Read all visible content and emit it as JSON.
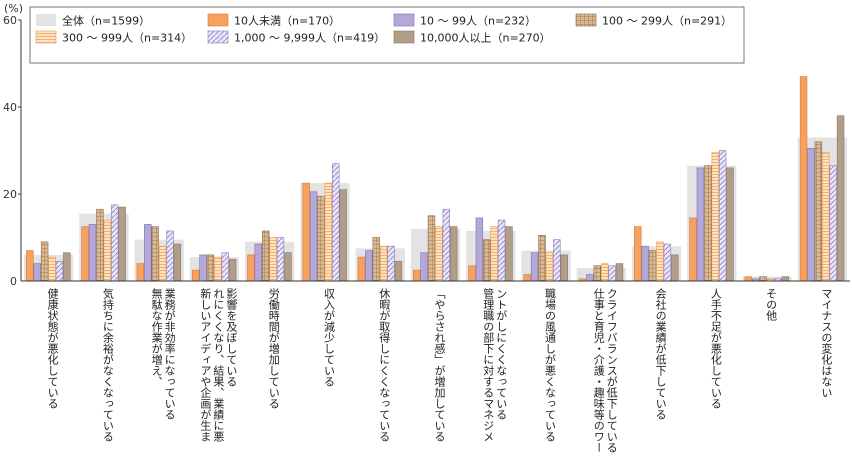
{
  "chart_data": {
    "type": "bar",
    "unit": "(%)",
    "ylim": [
      0,
      60
    ],
    "yticks": [
      0,
      20,
      40,
      60
    ],
    "grid": false,
    "legend_position": "top",
    "categories": [
      "健康状態が悪化している",
      "気持ちに余裕がなくなっている",
      "無駄な作業が増え、業務が非効率になっている",
      "新しいアイディアや企画が生まれにくくなり、結果、業績に悪影響を及ぼしている",
      "労働時間が増加している",
      "収入が減少している",
      "休暇が取得しにくくなっている",
      "「やらされ感」が増加している",
      "管理職の部下に対するマネジメントがしにくくなっている",
      "職場の風通しが悪くなっている",
      "仕事と育児・介護・趣味等のワークライフバランスが低下している",
      "会社の業績が低下している",
      "人手不足が悪化している",
      "その他",
      "マイナスの変化はない"
    ],
    "category_lines": [
      [
        "健康状態が悪化している"
      ],
      [
        "気持ちに余裕がなくなっている"
      ],
      [
        "無駄な作業が増え、",
        "業務が非効率になっている"
      ],
      [
        "新しいアイディアや企画が生ま",
        "れにくくなり、結果、業績に悪",
        "影響を及ぼしている"
      ],
      [
        "労働時間が増加している"
      ],
      [
        "収入が減少している"
      ],
      [
        "休暇が取得しにくくなっている"
      ],
      [
        "「やらされ感」が増加している"
      ],
      [
        "管理職の部下に対するマネジメ",
        "ントがしにくくなっている"
      ],
      [
        "職場の風通しが悪くなっている"
      ],
      [
        "仕事と育児・介護・趣味等のワー",
        "クライフバランスが低下している"
      ],
      [
        "会社の業績が低下している"
      ],
      [
        "人手不足が悪化している"
      ],
      [
        "その他"
      ],
      [
        "マイナスの変化はない"
      ]
    ],
    "total": {
      "name": "全体（n=1599）",
      "color": "#e3e3e3",
      "values": [
        6,
        15.5,
        9.5,
        5.5,
        9,
        22.5,
        7.5,
        12,
        11.5,
        7,
        3,
        8,
        26.5,
        1,
        33
      ]
    },
    "series": [
      {
        "name": "10人未満（n=170）",
        "color": "#f6a15f",
        "pattern": "solid",
        "values": [
          7,
          12.5,
          4,
          2.5,
          6,
          22.5,
          5.5,
          2.5,
          3.5,
          1.5,
          0.5,
          12.5,
          14.5,
          1,
          47
        ]
      },
      {
        "name": "10 ～ 99人（n=232）",
        "color": "#b5a8d8",
        "pattern": "solid",
        "values": [
          4,
          13,
          13,
          6,
          8.5,
          20.5,
          7,
          6.5,
          14.5,
          6.5,
          1.5,
          8,
          26,
          0.5,
          30.5
        ]
      },
      {
        "name": "100 ～ 299人（n=291）",
        "color": "#caa887",
        "pattern": "grid",
        "values": [
          9,
          16.5,
          12.5,
          6,
          11.5,
          19.5,
          10,
          15,
          9.5,
          10.5,
          3.5,
          7,
          26.5,
          1,
          32
        ]
      },
      {
        "name": "300 ～ 999人（n=314）",
        "color": "#fbd3a2",
        "pattern": "hlines",
        "values": [
          5.5,
          14,
          8,
          5.5,
          10,
          22.5,
          8,
          12.5,
          12.5,
          6.5,
          4,
          9,
          29.5,
          0.5,
          29.5
        ]
      },
      {
        "name": "1,000 ～ 9,999人（n=419）",
        "color": "#d6cff0",
        "pattern": "diag",
        "values": [
          4.5,
          17.5,
          11.5,
          6.5,
          10,
          27,
          8,
          16.5,
          14,
          9.5,
          3.5,
          8.5,
          30,
          0.5,
          26.5
        ]
      },
      {
        "name": "10,000人以上（n=270）",
        "color": "#b19d88",
        "pattern": "solid",
        "values": [
          6.5,
          17,
          8.5,
          5,
          6.5,
          21,
          4.5,
          12.5,
          12.5,
          6,
          4,
          6,
          26,
          1,
          38
        ]
      }
    ]
  }
}
